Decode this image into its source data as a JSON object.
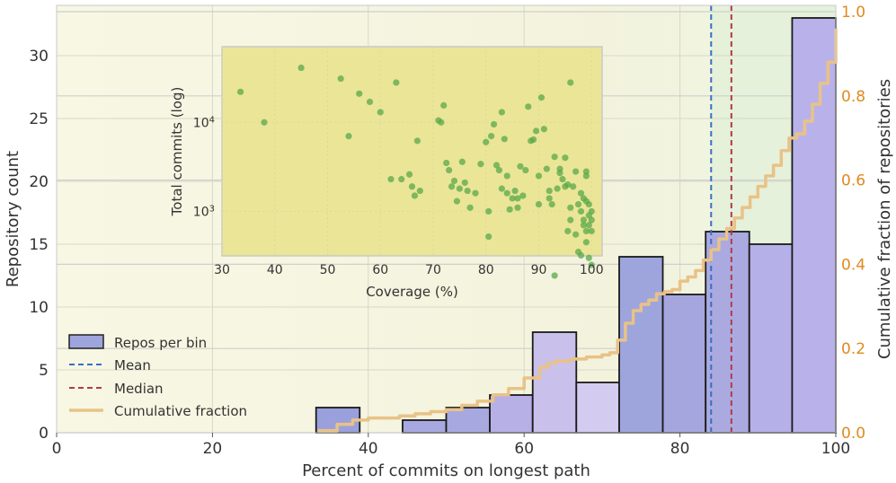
{
  "chart_data": [
    {
      "type": "bar",
      "title": "",
      "xlabel": "Percent of commits on longest path",
      "ylabel": "Repository count",
      "y2label": "Cumulative fraction of repositories",
      "xlim": [
        0,
        100
      ],
      "ylim": [
        0,
        34
      ],
      "y2lim": [
        0,
        1.0
      ],
      "xticks": [
        0,
        20,
        40,
        60,
        80,
        100
      ],
      "yticks": [
        0,
        5,
        10,
        15,
        20,
        25,
        30
      ],
      "y2ticks": [
        "0.0",
        "0.2",
        "0.4",
        "0.6",
        "0.8",
        "1.0"
      ],
      "bins": [
        {
          "x0": 33.3,
          "x1": 38.9,
          "value": 2,
          "color": "#9aa0dc"
        },
        {
          "x0": 38.9,
          "x1": 44.4,
          "value": 0,
          "color": "#b9b4ea"
        },
        {
          "x0": 44.4,
          "x1": 50.0,
          "value": 1,
          "color": "#a8a8e0"
        },
        {
          "x0": 50.0,
          "x1": 55.6,
          "value": 2,
          "color": "#a8a8e0"
        },
        {
          "x0": 55.6,
          "x1": 61.1,
          "value": 3,
          "color": "#b7b0e6"
        },
        {
          "x0": 61.1,
          "x1": 66.7,
          "value": 8,
          "color": "#c9c1ec"
        },
        {
          "x0": 66.7,
          "x1": 72.2,
          "value": 4,
          "color": "#d4cbf0"
        },
        {
          "x0": 72.2,
          "x1": 77.8,
          "value": 14,
          "color": "#9ea5dc"
        },
        {
          "x0": 77.8,
          "x1": 83.3,
          "value": 11,
          "color": "#a6a6df"
        },
        {
          "x0": 83.3,
          "x1": 88.9,
          "value": 16,
          "color": "#abaae0"
        },
        {
          "x0": 88.9,
          "x1": 94.4,
          "value": 15,
          "color": "#b6b0e8"
        },
        {
          "x0": 94.4,
          "x1": 100.0,
          "value": 33,
          "color": "#b9b2ea"
        }
      ],
      "mean": 84.0,
      "median": 86.6,
      "cumulative": {
        "x": [
          33.5,
          36,
          38,
          40,
          44,
          46,
          48,
          50,
          52,
          54,
          56,
          58,
          60,
          62,
          63,
          64,
          66,
          68,
          70,
          71,
          72,
          73,
          74,
          75,
          76,
          77,
          78,
          79,
          80,
          81,
          82,
          83,
          84,
          85,
          86,
          87,
          88,
          89,
          90,
          91,
          92,
          93,
          94,
          95,
          96,
          97,
          98,
          99,
          100
        ],
        "y": [
          0.005,
          0.02,
          0.03,
          0.035,
          0.04,
          0.045,
          0.05,
          0.055,
          0.065,
          0.075,
          0.09,
          0.105,
          0.13,
          0.155,
          0.165,
          0.17,
          0.175,
          0.18,
          0.185,
          0.19,
          0.22,
          0.26,
          0.29,
          0.305,
          0.315,
          0.33,
          0.335,
          0.34,
          0.36,
          0.37,
          0.385,
          0.41,
          0.435,
          0.46,
          0.485,
          0.51,
          0.535,
          0.56,
          0.585,
          0.61,
          0.635,
          0.67,
          0.7,
          0.71,
          0.74,
          0.78,
          0.83,
          0.88,
          0.96
        ]
      },
      "colors": {
        "mean": "#3a6fc4",
        "median": "#b03a48",
        "cumulative": "#e9c287",
        "right_axis": "#e08a1e"
      },
      "legend": {
        "placement": "lower-left",
        "entries": [
          "Repos per bin",
          "Mean",
          "Median",
          "Cumulative fraction"
        ]
      }
    },
    {
      "type": "scatter",
      "title": "",
      "xlabel": "Coverage (%)",
      "ylabel": "Total commits (log)",
      "xlim": [
        30,
        102
      ],
      "ylim_log10": [
        2.5,
        4.85
      ],
      "xticks": [
        30,
        40,
        50,
        60,
        70,
        80,
        90,
        100
      ],
      "yticks": [
        {
          "exp": 3,
          "value": 1000
        },
        {
          "exp": 4,
          "value": 10000
        }
      ],
      "color": "#5aa84a",
      "points": [
        [
          33.5,
          22000
        ],
        [
          38,
          10000
        ],
        [
          45,
          41000
        ],
        [
          52.5,
          31000
        ],
        [
          54,
          7000
        ],
        [
          56,
          21000
        ],
        [
          58,
          17000
        ],
        [
          60,
          13000
        ],
        [
          62,
          2300
        ],
        [
          63,
          28000
        ],
        [
          64,
          2300
        ],
        [
          65.5,
          2600
        ],
        [
          66,
          1900
        ],
        [
          66.5,
          1500
        ],
        [
          67,
          6200
        ],
        [
          67.5,
          1700
        ],
        [
          71,
          10500
        ],
        [
          71.5,
          10000
        ],
        [
          72,
          15500
        ],
        [
          72.5,
          3500
        ],
        [
          73,
          2900
        ],
        [
          73.5,
          1900
        ],
        [
          74,
          2200
        ],
        [
          74.5,
          1300
        ],
        [
          75,
          1800
        ],
        [
          75.5,
          3600
        ],
        [
          76,
          2100
        ],
        [
          76.5,
          1700
        ],
        [
          77,
          1100
        ],
        [
          78,
          1600
        ],
        [
          79,
          3400
        ],
        [
          80,
          6000
        ],
        [
          80.5,
          1000
        ],
        [
          80.5,
          520
        ],
        [
          81,
          7000
        ],
        [
          81.5,
          9500
        ],
        [
          82,
          3300
        ],
        [
          82.5,
          2900
        ],
        [
          83,
          13000
        ],
        [
          83,
          1800
        ],
        [
          83.5,
          6500
        ],
        [
          84,
          1600
        ],
        [
          84,
          2500
        ],
        [
          84.5,
          1050
        ],
        [
          85,
          1400
        ],
        [
          85.5,
          1700
        ],
        [
          86,
          1100
        ],
        [
          86,
          1400
        ],
        [
          86.5,
          3200
        ],
        [
          87,
          1500
        ],
        [
          87.5,
          2900
        ],
        [
          88,
          15000
        ],
        [
          88.5,
          6200
        ],
        [
          89,
          6400
        ],
        [
          89.5,
          8000
        ],
        [
          90,
          2500
        ],
        [
          90,
          1200
        ],
        [
          90.5,
          19000
        ],
        [
          91,
          8400
        ],
        [
          91.5,
          3000
        ],
        [
          92,
          1700
        ],
        [
          92,
          1400
        ],
        [
          92.5,
          1200
        ],
        [
          93,
          4100
        ],
        [
          93,
          190
        ],
        [
          93.5,
          1800
        ],
        [
          94,
          2700
        ],
        [
          94.5,
          2300
        ],
        [
          95,
          1900
        ],
        [
          95.5,
          2000
        ],
        [
          95.5,
          600
        ],
        [
          96,
          1100
        ],
        [
          96,
          800
        ],
        [
          96.5,
          1900
        ],
        [
          97,
          2800
        ],
        [
          97,
          550
        ],
        [
          97.5,
          1200
        ],
        [
          98,
          1000
        ],
        [
          98,
          1600
        ],
        [
          98.5,
          800
        ],
        [
          98.5,
          700
        ],
        [
          99,
          2500
        ],
        [
          99,
          2800
        ],
        [
          99,
          1300
        ],
        [
          99.5,
          900
        ],
        [
          99.5,
          700
        ],
        [
          99.5,
          300
        ],
        [
          100,
          1000
        ],
        [
          100,
          600
        ],
        [
          100,
          250
        ],
        [
          96,
          28000
        ],
        [
          95,
          4000
        ],
        [
          94,
          3000
        ],
        [
          97.5,
          350
        ],
        [
          99,
          450
        ],
        [
          98.5,
          1400
        ],
        [
          99.5,
          1200
        ],
        [
          100,
          800
        ],
        [
          99,
          600
        ],
        [
          98,
          320
        ]
      ]
    }
  ]
}
